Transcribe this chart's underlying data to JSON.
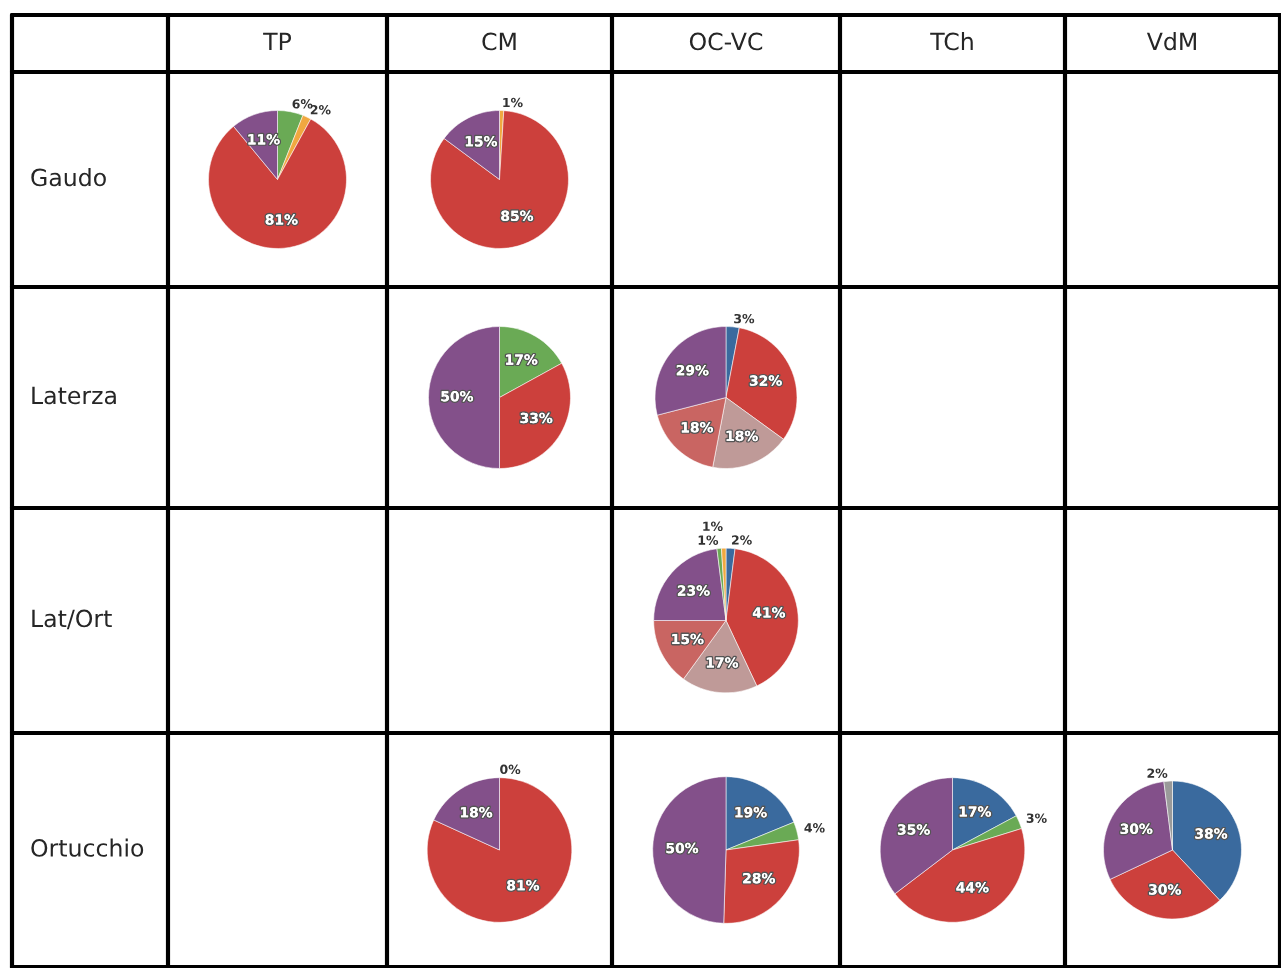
{
  "chart_data": [
    {
      "type": "other",
      "categories": [
        "TP",
        "CM",
        "OC-VC",
        "TCh",
        "VdM"
      ],
      "y_categories": [
        "Gaudo",
        "Laterza",
        "Lat/Ort",
        "Ortucchio"
      ]
    },
    {
      "type": "pie",
      "values": [
        6,
        2,
        81,
        11
      ],
      "colors": [
        "#6aaa55",
        "#f0a840",
        "#cc403c",
        "#83508a"
      ],
      "value_labels": [
        "6%",
        "2%",
        "81%",
        "11%"
      ]
    },
    {
      "type": "pie",
      "values": [
        1,
        85,
        15
      ],
      "colors": [
        "#f0a840",
        "#cc403c",
        "#83508a"
      ],
      "value_labels": [
        "1%",
        "85%",
        "15%"
      ]
    },
    {
      "type": "pie",
      "values": [
        17,
        33,
        50
      ],
      "colors": [
        "#6aaa55",
        "#cc403c",
        "#83508a"
      ],
      "value_labels": [
        "17%",
        "33%",
        "50%"
      ]
    },
    {
      "type": "pie",
      "values": [
        3,
        32,
        18,
        18,
        29
      ],
      "colors": [
        "#3a6a9e",
        "#cc403c",
        "#bf9a98",
        "#c96562",
        "#83508a"
      ],
      "value_labels": [
        "3%",
        "32%",
        "18%",
        "18%",
        "29%"
      ]
    },
    {
      "type": "pie",
      "values": [
        2,
        41,
        17,
        15,
        23,
        1,
        1
      ],
      "colors": [
        "#3a6a9e",
        "#cc403c",
        "#bf9a98",
        "#c96562",
        "#83508a",
        "#6aaa55",
        "#f0a840"
      ],
      "value_labels": [
        "2%",
        "41%",
        "17%",
        "15%",
        "23%",
        "1%",
        "1%"
      ]
    },
    {
      "type": "pie",
      "values": [
        0,
        81,
        18
      ],
      "colors": [
        "#3a6a9e",
        "#cc403c",
        "#83508a"
      ],
      "value_labels": [
        "0%",
        "81%",
        "18%"
      ]
    },
    {
      "type": "pie",
      "values": [
        19,
        4,
        28,
        50
      ],
      "colors": [
        "#3a6a9e",
        "#6aaa55",
        "#cc403c",
        "#83508a"
      ],
      "value_labels": [
        "19%",
        "4%",
        "28%",
        "50%"
      ]
    },
    {
      "type": "pie",
      "values": [
        17,
        3,
        44,
        35
      ],
      "colors": [
        "#3a6a9e",
        "#6aaa55",
        "#cc403c",
        "#83508a"
      ],
      "value_labels": [
        "17%",
        "3%",
        "44%",
        "35%"
      ]
    },
    {
      "type": "pie",
      "values": [
        38,
        30,
        30,
        2
      ],
      "colors": [
        "#3a6a9e",
        "#cc403c",
        "#83508a",
        "#9a9a9a"
      ],
      "value_labels": [
        "38%",
        "30%",
        "30%",
        "2%"
      ]
    }
  ]
}
